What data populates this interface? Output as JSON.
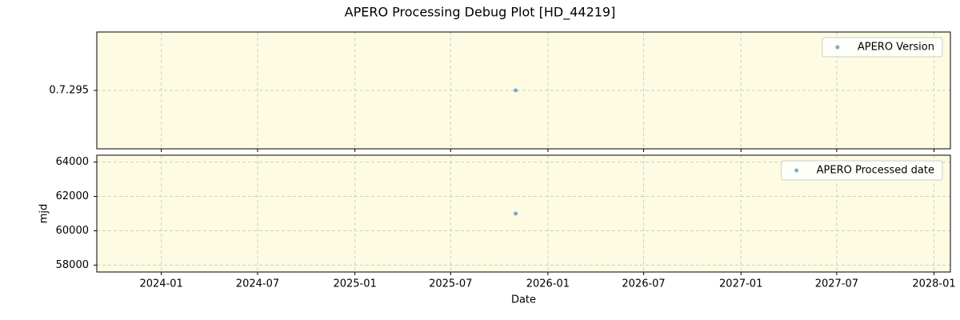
{
  "title": "APERO Processing Debug Plot [HD_44219]",
  "chart_data": [
    {
      "type": "scatter",
      "x": [
        "2025-11"
      ],
      "y_categories": [
        "0.7.295"
      ],
      "series": [
        {
          "name": "APERO Version",
          "color": "#1f77b4",
          "values": [
            "0.7.295"
          ]
        }
      ],
      "grid": true,
      "legend": "upper-right",
      "background": "#fdfce3"
    },
    {
      "type": "scatter",
      "x": [
        "2025-11"
      ],
      "series": [
        {
          "name": "APERO Processed date",
          "color": "#1f77b4",
          "values": [
            61000
          ]
        }
      ],
      "xlabel": "Date",
      "ylabel": "mjd",
      "xlim": [
        "2023-09",
        "2028-02"
      ],
      "xticks": [
        "2024-01",
        "2024-07",
        "2025-01",
        "2025-07",
        "2026-01",
        "2026-07",
        "2027-01",
        "2027-07",
        "2028-01"
      ],
      "ylim": [
        57600,
        64400
      ],
      "yticks": [
        58000,
        60000,
        62000,
        64000
      ],
      "grid": true,
      "legend": "upper-right",
      "background": "#fdfce3"
    }
  ]
}
